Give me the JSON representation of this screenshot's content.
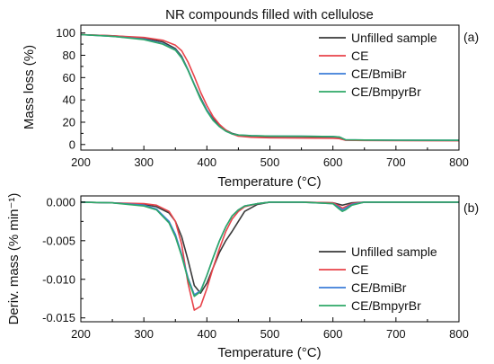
{
  "chart_data": [
    {
      "type": "line",
      "title": "NR compounds filled with cellulose",
      "panel_label": "(a)",
      "xlabel": "Temperature (°C)",
      "ylabel": "Mass loss (%)",
      "xlim": [
        200,
        800
      ],
      "ylim": [
        -5,
        107
      ],
      "xticks": [
        200,
        300,
        400,
        500,
        600,
        700,
        800
      ],
      "yticks": [
        0,
        20,
        40,
        60,
        80,
        100
      ],
      "grid": false,
      "legend_position": "top-right",
      "series": [
        {
          "name": "Unfilled sample",
          "color": "#3a3a3a",
          "x": [
            200,
            250,
            300,
            330,
            350,
            360,
            370,
            380,
            390,
            400,
            410,
            420,
            430,
            440,
            450,
            470,
            500,
            550,
            600,
            610,
            620,
            650,
            700,
            800
          ],
          "y": [
            98.5,
            97.5,
            95.5,
            92,
            86,
            79,
            67,
            54,
            42,
            31,
            23,
            17,
            13,
            10,
            8.5,
            7.5,
            7.2,
            7,
            6.8,
            6.5,
            4,
            3.8,
            3.7,
            3.6
          ]
        },
        {
          "name": "CE",
          "color": "#e8434a",
          "x": [
            200,
            250,
            300,
            330,
            350,
            360,
            370,
            380,
            390,
            400,
            410,
            420,
            430,
            440,
            450,
            470,
            500,
            550,
            600,
            610,
            620,
            650,
            700,
            800
          ],
          "y": [
            98.5,
            97.5,
            96,
            93.5,
            89,
            84,
            74,
            61,
            47,
            35,
            25,
            18,
            13,
            9.5,
            7.5,
            6.5,
            6,
            5.8,
            5.6,
            5.3,
            3.8,
            3.6,
            3.5,
            3.4
          ]
        },
        {
          "name": "CE/BmiBr",
          "color": "#3b7dd8",
          "x": [
            200,
            250,
            300,
            330,
            350,
            360,
            370,
            380,
            390,
            400,
            410,
            420,
            430,
            440,
            450,
            470,
            500,
            550,
            600,
            610,
            620,
            650,
            700,
            800
          ],
          "y": [
            98.5,
            97,
            94.5,
            90.5,
            85,
            78,
            67,
            54,
            41,
            31,
            22,
            16,
            12,
            9.5,
            8.5,
            8,
            7.6,
            7.4,
            7.2,
            6.8,
            4.3,
            4,
            3.9,
            3.8
          ]
        },
        {
          "name": "CE/BmpyrBr",
          "color": "#2ea867",
          "x": [
            200,
            250,
            300,
            330,
            350,
            360,
            370,
            380,
            390,
            400,
            410,
            420,
            430,
            440,
            450,
            470,
            500,
            550,
            600,
            610,
            620,
            650,
            700,
            800
          ],
          "y": [
            98.5,
            97,
            94,
            90,
            84.5,
            77.5,
            66.5,
            53.5,
            40.5,
            30,
            21.5,
            16,
            12,
            9.5,
            8.5,
            8,
            7.6,
            7.4,
            7.2,
            6.8,
            4.3,
            4,
            3.9,
            3.8
          ]
        }
      ]
    },
    {
      "type": "line",
      "panel_label": "(b)",
      "xlabel": "Temperature (°C)",
      "ylabel": "Deriv. mass (% min⁻¹)",
      "xlim": [
        200,
        800
      ],
      "ylim": [
        -0.0155,
        0.0008
      ],
      "xticks": [
        200,
        300,
        400,
        500,
        600,
        700,
        800
      ],
      "yticks": [
        0.0,
        -0.005,
        -0.01,
        -0.015
      ],
      "ytick_labels": [
        "0.000",
        "-0.005",
        "-0.010",
        "-0.015"
      ],
      "grid": false,
      "legend_position": "bottom-right",
      "series": [
        {
          "name": "Unfilled sample",
          "color": "#3a3a3a",
          "x": [
            200,
            250,
            300,
            320,
            340,
            350,
            360,
            370,
            380,
            390,
            400,
            410,
            420,
            430,
            440,
            450,
            460,
            480,
            500,
            550,
            600,
            610,
            615,
            620,
            630,
            650,
            700,
            800
          ],
          "y": [
            0,
            -0.0001,
            -0.0003,
            -0.0006,
            -0.0014,
            -0.0025,
            -0.0045,
            -0.0075,
            -0.0108,
            -0.0118,
            -0.0105,
            -0.0085,
            -0.0065,
            -0.005,
            -0.0038,
            -0.0025,
            -0.0012,
            -0.0003,
            0,
            0,
            -0.0001,
            -0.0003,
            -0.0004,
            -0.0003,
            -0.0001,
            0,
            0,
            0
          ]
        },
        {
          "name": "CE",
          "color": "#e8434a",
          "x": [
            200,
            250,
            300,
            320,
            340,
            350,
            360,
            370,
            380,
            390,
            400,
            410,
            420,
            430,
            440,
            450,
            460,
            480,
            500,
            550,
            600,
            610,
            615,
            620,
            630,
            650,
            700,
            800
          ],
          "y": [
            0,
            -0.0001,
            -0.0002,
            -0.0004,
            -0.0012,
            -0.0025,
            -0.0055,
            -0.0105,
            -0.014,
            -0.0135,
            -0.0112,
            -0.0085,
            -0.006,
            -0.0038,
            -0.0022,
            -0.0012,
            -0.0006,
            -0.0002,
            0,
            0,
            -0.0001,
            -0.0005,
            -0.0008,
            -0.0006,
            -0.0002,
            0,
            0,
            0
          ]
        },
        {
          "name": "CE/BmiBr",
          "color": "#3b7dd8",
          "x": [
            200,
            250,
            300,
            320,
            340,
            350,
            360,
            370,
            380,
            390,
            400,
            410,
            420,
            430,
            440,
            450,
            460,
            480,
            500,
            550,
            600,
            610,
            615,
            620,
            630,
            650,
            700,
            800
          ],
          "y": [
            0,
            -0.0001,
            -0.0004,
            -0.0009,
            -0.0025,
            -0.0042,
            -0.0068,
            -0.0098,
            -0.012,
            -0.0115,
            -0.0095,
            -0.0072,
            -0.005,
            -0.0032,
            -0.0018,
            -0.001,
            -0.0005,
            -0.0002,
            0,
            0,
            -0.0002,
            -0.0007,
            -0.001,
            -0.0008,
            -0.0003,
            0,
            0,
            0
          ]
        },
        {
          "name": "CE/BmpyrBr",
          "color": "#2ea867",
          "x": [
            200,
            250,
            300,
            320,
            340,
            350,
            360,
            370,
            380,
            390,
            400,
            410,
            420,
            430,
            440,
            450,
            460,
            480,
            500,
            550,
            600,
            610,
            615,
            620,
            630,
            650,
            700,
            800
          ],
          "y": [
            0,
            -0.0001,
            -0.0005,
            -0.001,
            -0.0027,
            -0.0045,
            -0.007,
            -0.01,
            -0.0122,
            -0.0116,
            -0.0095,
            -0.0072,
            -0.005,
            -0.0032,
            -0.0018,
            -0.001,
            -0.0005,
            -0.0002,
            0,
            0,
            -0.0002,
            -0.0009,
            -0.0012,
            -0.001,
            -0.0004,
            0,
            0,
            0
          ]
        }
      ]
    }
  ]
}
